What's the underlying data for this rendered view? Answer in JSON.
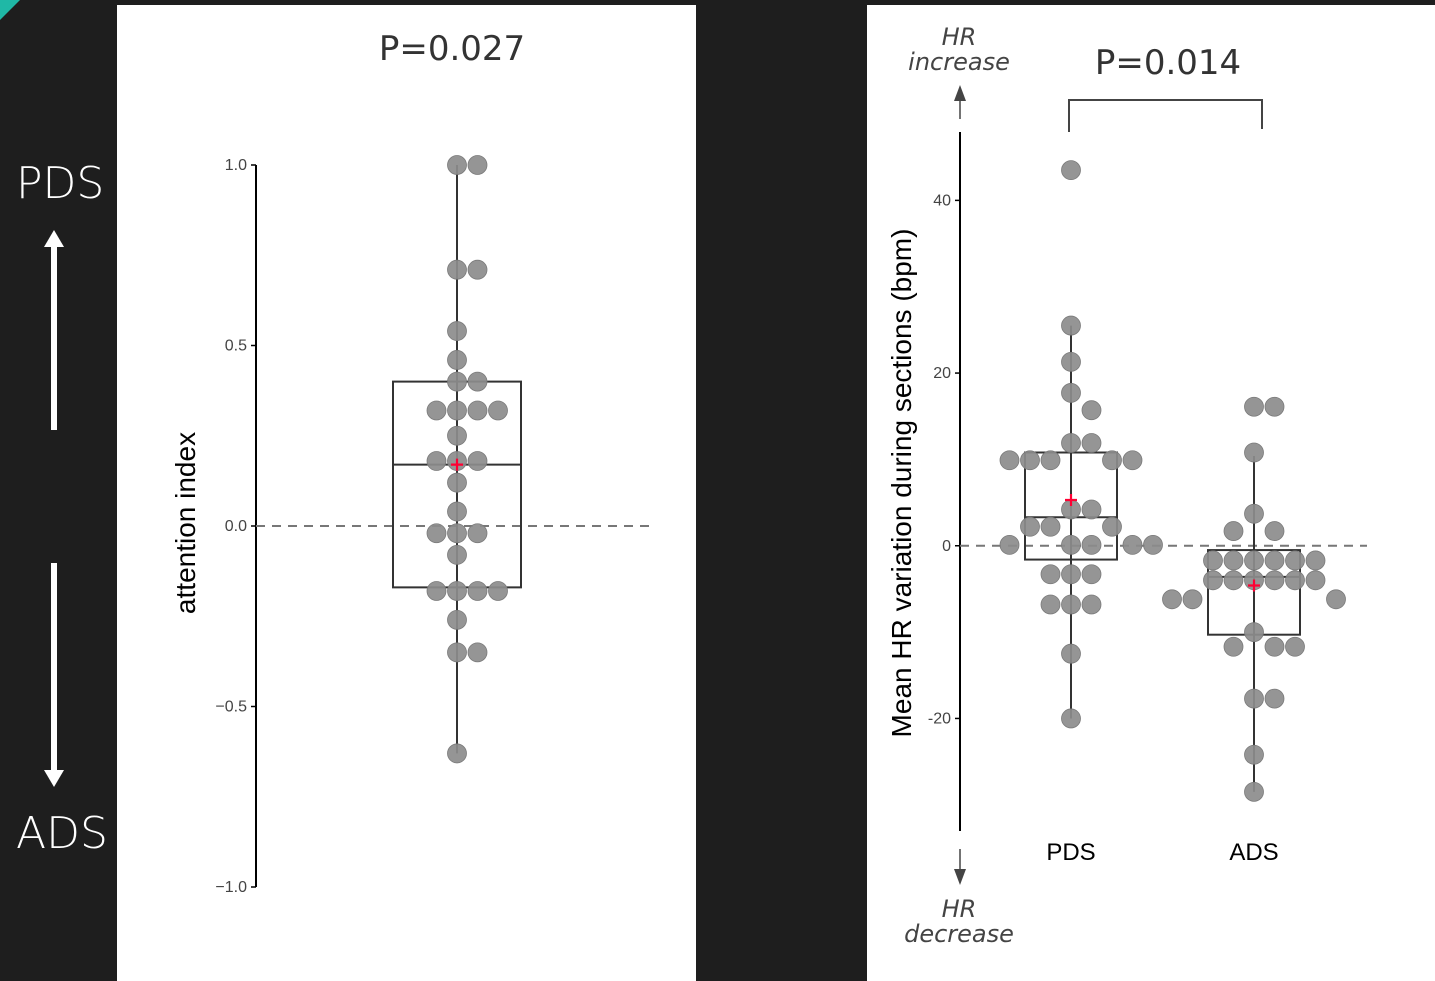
{
  "slide": {
    "top_label": "PDS",
    "bottom_label": "ADS",
    "colors": {
      "background": "#1e1e1e",
      "accent": "#1fb8a6",
      "point": "#8c8c8c",
      "mean_marker": "#ff0033"
    }
  },
  "chart_data": [
    {
      "type": "box",
      "title": "P=0.027",
      "ylabel": "attention index",
      "ylim": [
        -1.0,
        1.0
      ],
      "yticks": [
        "1.0",
        "0.5",
        "0.0",
        "−0.5",
        "−1.0"
      ],
      "ytick_values": [
        1.0,
        0.5,
        0.0,
        -0.5,
        -1.0
      ],
      "reference_line": 0,
      "groups": [
        {
          "box": {
            "q1": -0.17,
            "median": 0.17,
            "q3": 0.4,
            "whisker_low": -0.63,
            "whisker_high": 1.0,
            "mean": 0.17
          },
          "points": [
            1.0,
            1.0,
            0.71,
            0.71,
            0.54,
            0.46,
            0.4,
            0.4,
            0.32,
            0.32,
            0.32,
            0.32,
            0.25,
            0.18,
            0.18,
            0.18,
            0.12,
            0.04,
            -0.02,
            -0.02,
            -0.02,
            -0.08,
            -0.18,
            -0.18,
            -0.18,
            -0.18,
            -0.26,
            -0.35,
            -0.35,
            -0.63
          ]
        }
      ]
    },
    {
      "type": "box",
      "title": "P=0.014",
      "ylabel": "Mean HR variation during sections (bpm)",
      "ylim": [
        -33,
        48
      ],
      "yticks": [
        "40",
        "20",
        "0",
        "-20"
      ],
      "ytick_values": [
        40,
        20,
        0,
        -20
      ],
      "reference_line": 0,
      "annotations": {
        "top": [
          "HR",
          "increase"
        ],
        "bottom": [
          "HR",
          "decrease"
        ]
      },
      "categories": [
        "PDS",
        "ADS"
      ],
      "groups": [
        {
          "box": {
            "q1": -1.6,
            "median": 3.3,
            "q3": 10.8,
            "whisker_low": -20.0,
            "whisker_high": 25.5,
            "mean": 5.3
          },
          "points": [
            43.5,
            25.5,
            21.3,
            17.7,
            15.7,
            11.9,
            11.9,
            9.9,
            9.9,
            9.9,
            9.9,
            9.9,
            4.2,
            4.2,
            2.2,
            2.2,
            2.2,
            0.1,
            0.1,
            0.1,
            0.1,
            0.1,
            -3.3,
            -3.3,
            -3.3,
            -6.8,
            -6.8,
            -6.8,
            -12.5,
            -20.0
          ]
        },
        {
          "box": {
            "q1": -10.3,
            "median": -3.6,
            "q3": -0.5,
            "whisker_low": -28.5,
            "whisker_high": 10.4,
            "mean": -4.6
          },
          "points": [
            16.1,
            16.1,
            10.8,
            3.7,
            1.7,
            1.7,
            -1.7,
            -1.7,
            -1.7,
            -1.7,
            -1.7,
            -1.7,
            -4.0,
            -4.0,
            -4.0,
            -4.0,
            -4.0,
            -4.0,
            -6.2,
            -6.2,
            -6.2,
            -10.0,
            -11.7,
            -11.7,
            -11.7,
            -17.7,
            -17.7,
            -24.2,
            -28.5
          ]
        }
      ]
    }
  ]
}
